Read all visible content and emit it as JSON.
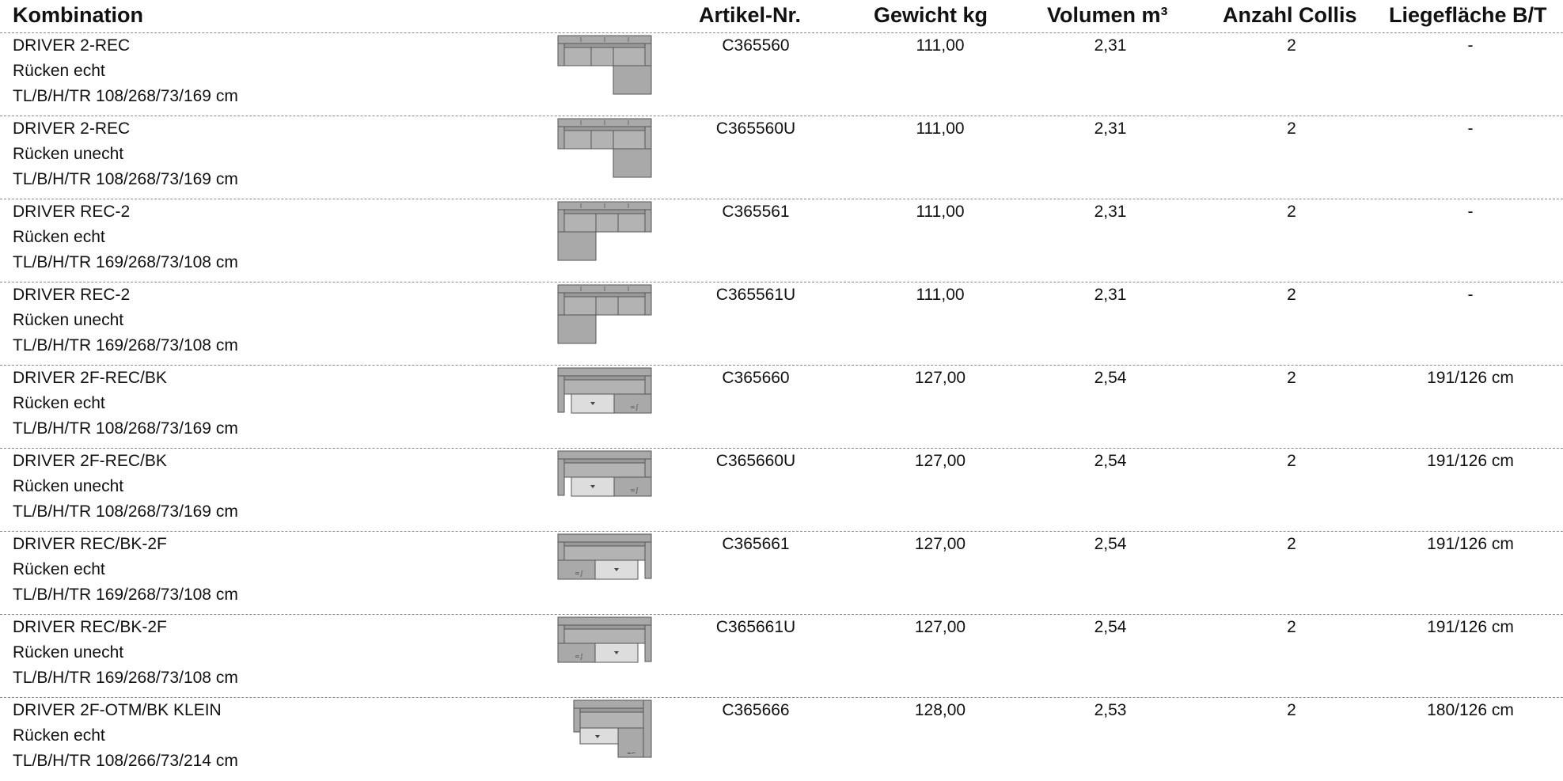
{
  "headers": {
    "combination": "Kombination",
    "article": "Artikel-Nr.",
    "weight": "Gewicht kg",
    "volume": "Volumen m³",
    "collis": "Anzahl Collis",
    "bed": "Liegefläche B/T"
  },
  "rows": [
    {
      "name": "DRIVER 2-REC",
      "back": "Rücken echt",
      "dims": "TL/B/H/TR 108/268/73/169 cm",
      "article": "C365560",
      "weight": "111,00",
      "volume": "2,31",
      "collis": "2",
      "bed": "-",
      "diagram": "sofa-right-chaise-icon"
    },
    {
      "name": "DRIVER 2-REC",
      "back": "Rücken unecht",
      "dims": "TL/B/H/TR 108/268/73/169 cm",
      "article": "C365560U",
      "weight": "111,00",
      "volume": "2,31",
      "collis": "2",
      "bed": "-",
      "diagram": "sofa-right-chaise-icon"
    },
    {
      "name": "DRIVER REC-2",
      "back": "Rücken echt",
      "dims": "TL/B/H/TR 169/268/73/108 cm",
      "article": "C365561",
      "weight": "111,00",
      "volume": "2,31",
      "collis": "2",
      "bed": "-",
      "diagram": "sofa-left-chaise-icon"
    },
    {
      "name": "DRIVER REC-2",
      "back": "Rücken unecht",
      "dims": "TL/B/H/TR 169/268/73/108 cm",
      "article": "C365561U",
      "weight": "111,00",
      "volume": "2,31",
      "collis": "2",
      "bed": "-",
      "diagram": "sofa-left-chaise-icon"
    },
    {
      "name": "DRIVER 2F-REC/BK",
      "back": "Rücken echt",
      "dims": "TL/B/H/TR 108/268/73/169 cm",
      "article": "C365660",
      "weight": "127,00",
      "volume": "2,54",
      "collis": "2",
      "bed": "191/126 cm",
      "diagram": "sofa-bed-right-icon"
    },
    {
      "name": "DRIVER 2F-REC/BK",
      "back": "Rücken unecht",
      "dims": "TL/B/H/TR 108/268/73/169 cm",
      "article": "C365660U",
      "weight": "127,00",
      "volume": "2,54",
      "collis": "2",
      "bed": "191/126 cm",
      "diagram": "sofa-bed-right-icon"
    },
    {
      "name": "DRIVER REC/BK-2F",
      "back": "Rücken echt",
      "dims": "TL/B/H/TR 169/268/73/108 cm",
      "article": "C365661",
      "weight": "127,00",
      "volume": "2,54",
      "collis": "2",
      "bed": "191/126 cm",
      "diagram": "sofa-bed-left-icon"
    },
    {
      "name": "DRIVER REC/BK-2F",
      "back": "Rücken unecht",
      "dims": "TL/B/H/TR 169/268/73/108 cm",
      "article": "C365661U",
      "weight": "127,00",
      "volume": "2,54",
      "collis": "2",
      "bed": "191/126 cm",
      "diagram": "sofa-bed-left-icon"
    },
    {
      "name": "DRIVER 2F-OTM/BK KLEIN",
      "back": "Rücken echt",
      "dims": "TL/B/H/TR 108/266/73/214 cm",
      "article": "C365666",
      "weight": "128,00",
      "volume": "2,53",
      "collis": "2",
      "bed": "180/126 cm",
      "diagram": "sofa-corner-ottoman-icon"
    }
  ]
}
